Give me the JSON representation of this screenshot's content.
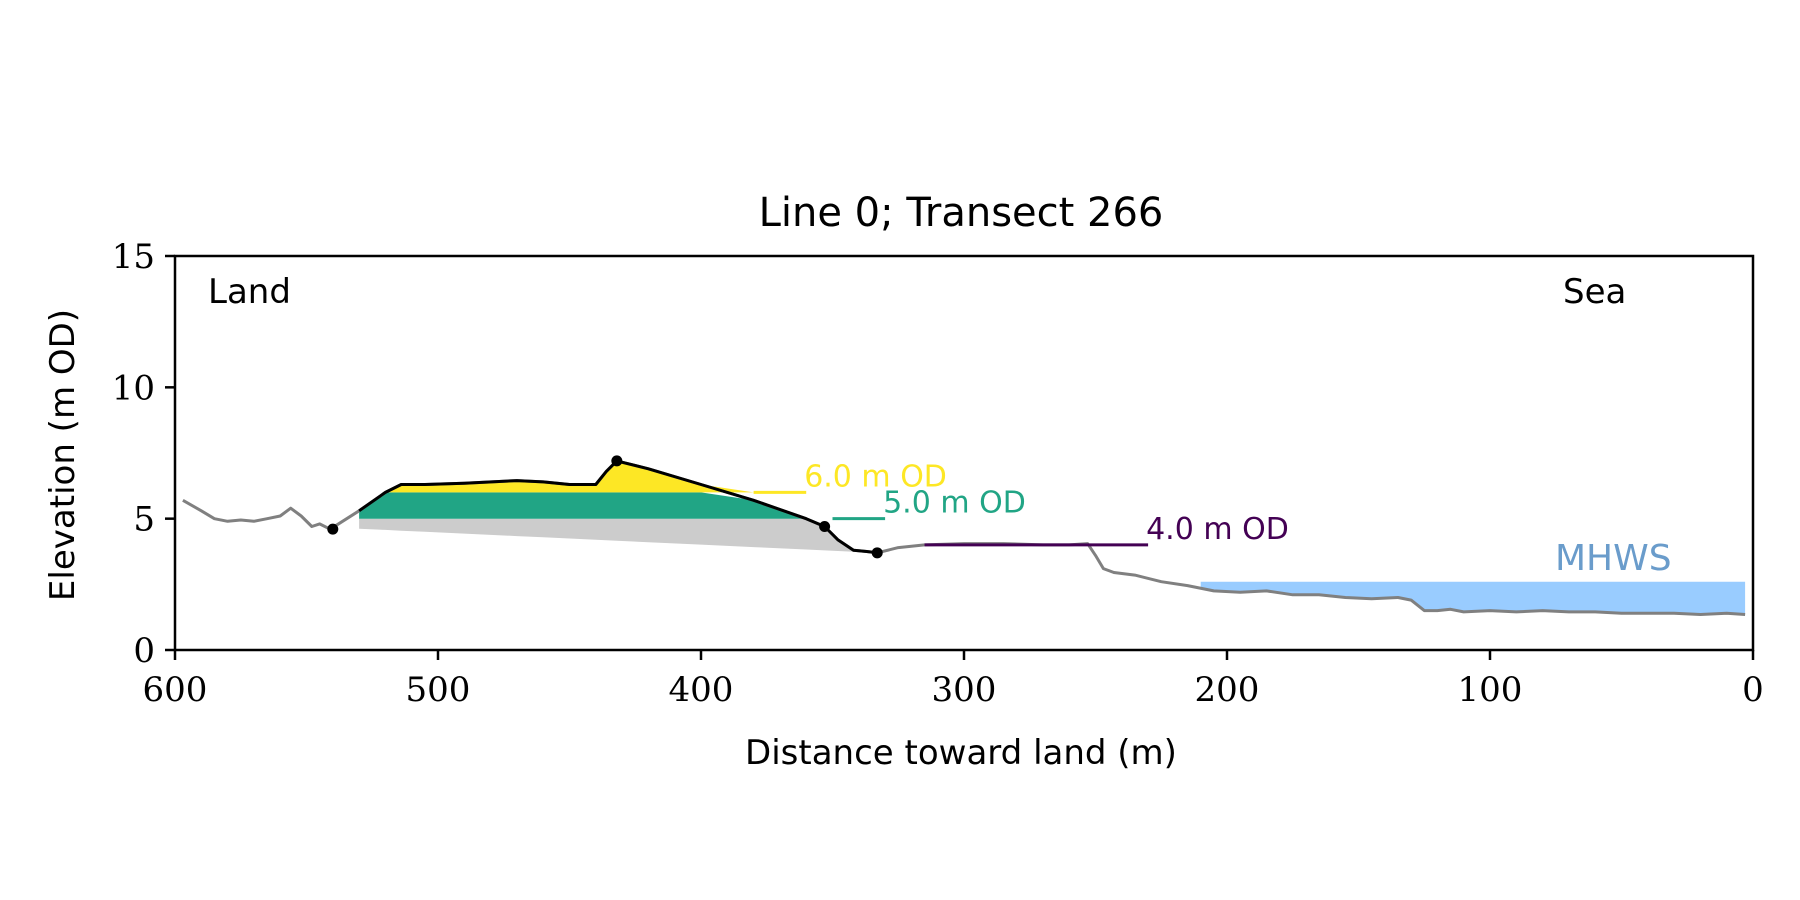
{
  "chart_data": {
    "type": "line",
    "title": "Line 0; Transect 266",
    "xlabel": "Distance toward land (m)",
    "ylabel": "Elevation (m OD)",
    "xlim": [
      600,
      0
    ],
    "ylim": [
      0,
      15
    ],
    "x_axis_reversed": true,
    "xticks": [
      600,
      500,
      400,
      300,
      200,
      100,
      0
    ],
    "yticks": [
      0,
      5,
      10,
      15
    ],
    "grid": false,
    "annotations": {
      "land_label": "Land",
      "sea_label": "Sea",
      "mhws_label": "MHWS"
    },
    "colors": {
      "profile": "#808080",
      "dune_outline": "#000000",
      "dune_base_fill": "#cccccc",
      "level_4": "#440154",
      "level_5": "#21a585",
      "level_6": "#fde725",
      "mhws_fill": "#99ccff",
      "mhws_text": "#6a9ccb"
    },
    "levels": [
      {
        "elevation": 6.0,
        "label": "6.0 m OD",
        "color": "#fde725",
        "x_start": 380
      },
      {
        "elevation": 5.0,
        "label": "5.0 m OD",
        "color": "#21a585",
        "x_start": 350
      },
      {
        "elevation": 4.0,
        "label": "4.0 m OD",
        "color": "#440154",
        "x_start": 315,
        "x_end": 230
      }
    ],
    "mhws": {
      "elevation": 2.6,
      "x_start": 210,
      "x_end": 3
    },
    "profile": {
      "x": [
        597,
        590,
        585,
        580,
        575,
        570,
        565,
        560,
        556,
        552,
        548,
        545,
        541,
        530,
        520,
        514,
        505,
        490,
        470,
        460,
        450,
        440,
        436,
        432,
        420,
        400,
        380,
        360,
        353,
        348,
        342,
        337,
        333,
        325,
        315,
        300,
        285,
        270,
        260,
        253,
        250,
        247,
        243,
        235,
        225,
        215,
        205,
        195,
        185,
        175,
        165,
        155,
        145,
        135,
        130,
        125,
        120,
        115,
        110,
        100,
        90,
        80,
        70,
        60,
        50,
        40,
        30,
        20,
        10,
        3
      ],
      "y": [
        5.7,
        5.3,
        5.0,
        4.9,
        4.95,
        4.9,
        5.0,
        5.1,
        5.4,
        5.1,
        4.7,
        4.8,
        4.6,
        5.3,
        6.0,
        6.3,
        6.3,
        6.35,
        6.45,
        6.4,
        6.3,
        6.3,
        6.8,
        7.2,
        6.9,
        6.3,
        5.7,
        5.0,
        4.7,
        4.2,
        3.8,
        3.75,
        3.7,
        3.9,
        4.0,
        4.05,
        4.05,
        4.0,
        4.0,
        4.05,
        3.6,
        3.1,
        2.95,
        2.85,
        2.6,
        2.45,
        2.25,
        2.2,
        2.25,
        2.1,
        2.1,
        2.0,
        1.95,
        2.0,
        1.9,
        1.5,
        1.5,
        1.55,
        1.45,
        1.5,
        1.45,
        1.5,
        1.45,
        1.45,
        1.4,
        1.4,
        1.4,
        1.35,
        1.4,
        1.35
      ]
    },
    "dune": {
      "start_x": 540,
      "end_x": 333,
      "crest": {
        "x": 432,
        "y": 7.2
      },
      "markers": [
        {
          "x": 540,
          "y": 4.6
        },
        {
          "x": 432,
          "y": 7.2
        },
        {
          "x": 353,
          "y": 4.7
        },
        {
          "x": 333,
          "y": 3.7
        }
      ]
    }
  }
}
